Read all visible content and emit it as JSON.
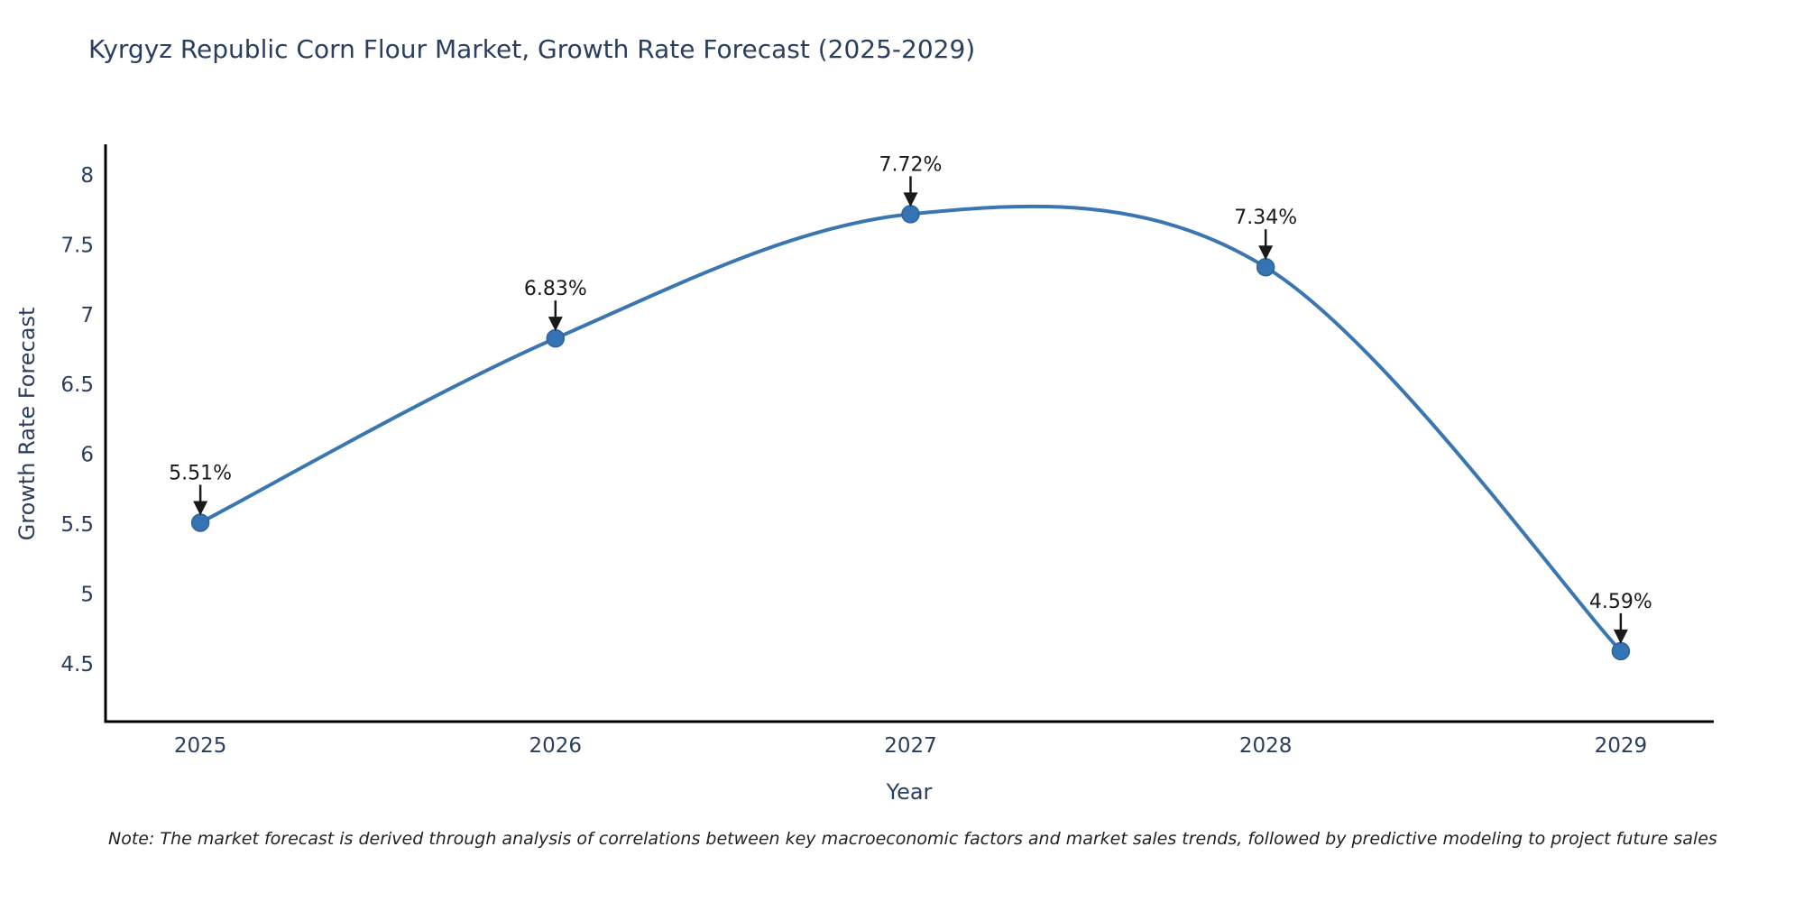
{
  "chart_data": {
    "type": "line",
    "title": "Kyrgyz Republic Corn Flour Market, Growth Rate Forecast (2025-2029)",
    "xlabel": "Year",
    "ylabel": "Growth Rate Forecast",
    "x": [
      2025,
      2026,
      2027,
      2028,
      2029
    ],
    "values": [
      5.51,
      6.83,
      7.72,
      7.34,
      4.59
    ],
    "point_labels": [
      "5.51%",
      "6.83%",
      "7.72%",
      "7.34%",
      "4.59%"
    ],
    "x_tick_labels": [
      "2025",
      "2026",
      "2027",
      "2028",
      "2029"
    ],
    "y_ticks": [
      4.5,
      5,
      5.5,
      6,
      6.5,
      7,
      7.5,
      8
    ],
    "xlim": [
      2024.733,
      2029.262
    ],
    "ylim": [
      4.085,
      8.22
    ],
    "grid": false,
    "legend": "none",
    "line_shape": "spline",
    "colors": {
      "line": "#3a76af",
      "marker": "#3474b4",
      "marker_edge": "#2f639a",
      "axis_line": "#000000",
      "title_text": "#2a3f5f",
      "tick_text": "#2a3f5f",
      "annotation": "#1a1a1a",
      "background": "#ffffff"
    },
    "note": "Note: The market forecast is derived through analysis of correlations between key macroeconomic factors and market sales trends, followed by predictive modeling to project future sales"
  }
}
